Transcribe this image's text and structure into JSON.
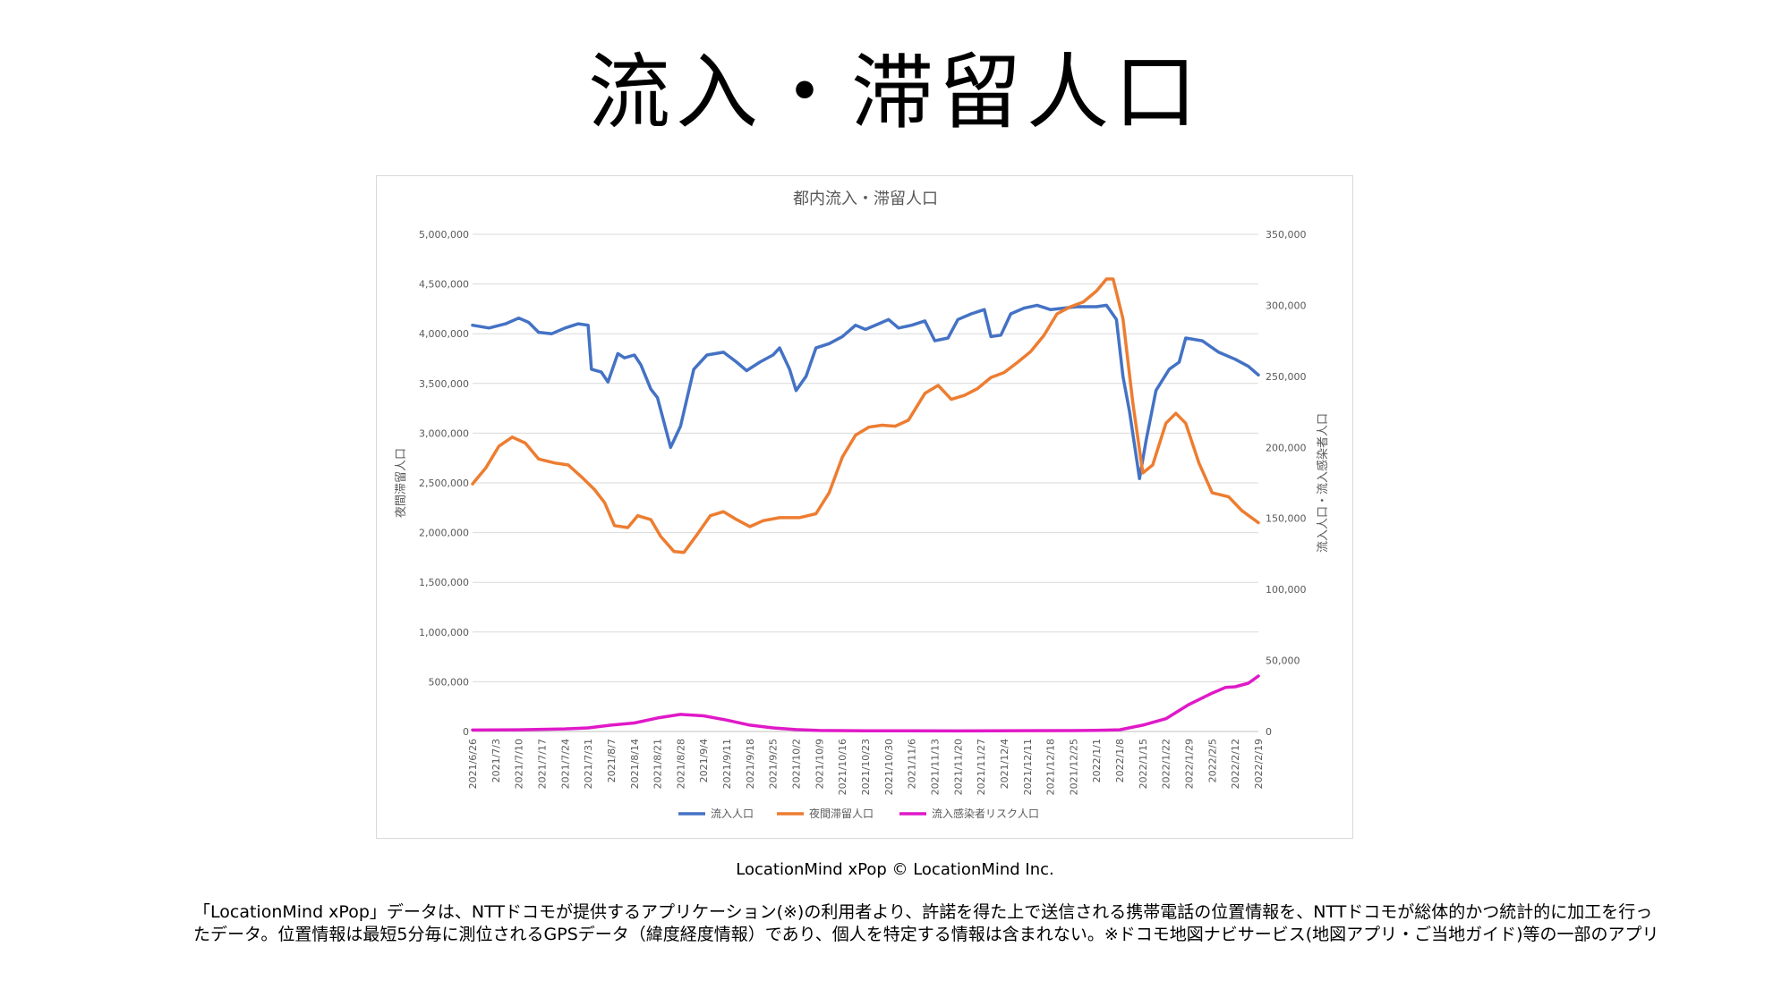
{
  "page": {
    "title": "流入・滞留人口",
    "credit": "LocationMind xPop © LocationMind Inc.",
    "description": "「LocationMind xPop」データは、NTTドコモが提供するアプリケーション(※)の利用者より、許諾を得た上で送信される携帯電話の位置情報を、NTTドコモが総体的かつ統計的に加工を行ったデータ。位置情報は最短5分毎に測位されるGPSデータ（緯度経度情報）であり、個人を特定する情報は含まれない。※ドコモ地図ナビサービス(地図アプリ・ご当地ガイド)等の一部のアプリ"
  },
  "colors": {
    "inflow": "#4472C4",
    "night": "#ED7D31",
    "risk": "#E019C8",
    "grid": "#d9d9d9",
    "axis_text": "#595959"
  },
  "chart_data": {
    "type": "line",
    "title": "都内流入・滞留人口",
    "ylabel_left": "夜間滞留人口",
    "ylabel_right": "流入人口・流入感染者人口",
    "ylim_left": [
      0,
      5000000
    ],
    "ylim_right": [
      0,
      350000
    ],
    "yticks_left": [
      "5,000,000",
      "4,500,000",
      "4,000,000",
      "3,500,000",
      "3,000,000",
      "2,500,000",
      "2,000,000",
      "1,500,000",
      "1,000,000",
      "500,000",
      "0"
    ],
    "yticks_right": [
      "350,000",
      "300,000",
      "250,000",
      "200,000",
      "150,000",
      "100,000",
      "50,000",
      "0"
    ],
    "x_range": [
      "2021/6/26",
      "2022/2/19"
    ],
    "x_ticks": [
      "2021/6/26",
      "2021/7/3",
      "2021/7/10",
      "2021/7/17",
      "2021/7/24",
      "2021/7/31",
      "2021/8/7",
      "2021/8/14",
      "2021/8/21",
      "2021/8/28",
      "2021/9/4",
      "2021/9/11",
      "2021/9/18",
      "2021/9/25",
      "2021/10/2",
      "2021/10/9",
      "2021/10/16",
      "2021/10/23",
      "2021/10/30",
      "2021/11/6",
      "2021/11/13",
      "2021/11/20",
      "2021/11/27",
      "2021/12/4",
      "2021/12/11",
      "2021/12/18",
      "2021/12/25",
      "2022/1/1",
      "2022/1/8",
      "2022/1/15",
      "2022/1/22",
      "2022/1/29",
      "2022/2/5",
      "2022/2/12",
      "2022/2/19"
    ],
    "legend_position": "bottom",
    "grid": true,
    "series": [
      {
        "name": "流入人口",
        "axis": "right",
        "points": [
          [
            "2021/6/26",
            286000
          ],
          [
            "2021/7/1",
            284000
          ],
          [
            "2021/7/6",
            287000
          ],
          [
            "2021/7/10",
            291000
          ],
          [
            "2021/7/13",
            288000
          ],
          [
            "2021/7/16",
            281000
          ],
          [
            "2021/7/20",
            280000
          ],
          [
            "2021/7/24",
            284000
          ],
          [
            "2021/7/28",
            287000
          ],
          [
            "2021/7/31",
            286000
          ],
          [
            "2021/8/1",
            255000
          ],
          [
            "2021/8/4",
            253000
          ],
          [
            "2021/8/6",
            246000
          ],
          [
            "2021/8/9",
            266000
          ],
          [
            "2021/8/11",
            263000
          ],
          [
            "2021/8/14",
            265000
          ],
          [
            "2021/8/16",
            258000
          ],
          [
            "2021/8/19",
            241000
          ],
          [
            "2021/8/21",
            235000
          ],
          [
            "2021/8/25",
            200000
          ],
          [
            "2021/8/28",
            215000
          ],
          [
            "2021/9/1",
            255000
          ],
          [
            "2021/9/5",
            265000
          ],
          [
            "2021/9/10",
            267000
          ],
          [
            "2021/9/14",
            260000
          ],
          [
            "2021/9/17",
            254000
          ],
          [
            "2021/9/21",
            260000
          ],
          [
            "2021/9/25",
            265000
          ],
          [
            "2021/9/27",
            270000
          ],
          [
            "2021/9/30",
            255000
          ],
          [
            "2021/10/2",
            240000
          ],
          [
            "2021/10/5",
            250000
          ],
          [
            "2021/10/8",
            270000
          ],
          [
            "2021/10/12",
            273000
          ],
          [
            "2021/10/16",
            278000
          ],
          [
            "2021/10/20",
            286000
          ],
          [
            "2021/10/23",
            283000
          ],
          [
            "2021/10/27",
            287000
          ],
          [
            "2021/10/30",
            290000
          ],
          [
            "2021/11/2",
            284000
          ],
          [
            "2021/11/6",
            286000
          ],
          [
            "2021/11/10",
            289000
          ],
          [
            "2021/11/13",
            275000
          ],
          [
            "2021/11/17",
            277000
          ],
          [
            "2021/11/20",
            290000
          ],
          [
            "2021/11/24",
            294000
          ],
          [
            "2021/11/28",
            297000
          ],
          [
            "2021/11/30",
            278000
          ],
          [
            "2021/12/3",
            279000
          ],
          [
            "2021/12/6",
            294000
          ],
          [
            "2021/12/10",
            298000
          ],
          [
            "2021/12/14",
            300000
          ],
          [
            "2021/12/18",
            297000
          ],
          [
            "2021/12/22",
            298000
          ],
          [
            "2021/12/26",
            299000
          ],
          [
            "2022/1/1",
            299000
          ],
          [
            "2022/1/4",
            300000
          ],
          [
            "2022/1/7",
            290000
          ],
          [
            "2022/1/9",
            250000
          ],
          [
            "2022/1/11",
            225000
          ],
          [
            "2022/1/14",
            178000
          ],
          [
            "2022/1/16",
            205000
          ],
          [
            "2022/1/19",
            240000
          ],
          [
            "2022/1/23",
            255000
          ],
          [
            "2022/1/26",
            260000
          ],
          [
            "2022/1/28",
            277000
          ],
          [
            "2022/2/2",
            275000
          ],
          [
            "2022/2/7",
            267000
          ],
          [
            "2022/2/12",
            262000
          ],
          [
            "2022/2/16",
            257000
          ],
          [
            "2022/2/19",
            251000
          ]
        ]
      },
      {
        "name": "夜間滞留人口",
        "axis": "left",
        "points": [
          [
            "2021/6/26",
            2490000
          ],
          [
            "2021/6/30",
            2650000
          ],
          [
            "2021/7/4",
            2870000
          ],
          [
            "2021/7/8",
            2960000
          ],
          [
            "2021/7/12",
            2900000
          ],
          [
            "2021/7/16",
            2740000
          ],
          [
            "2021/7/21",
            2700000
          ],
          [
            "2021/7/25",
            2680000
          ],
          [
            "2021/7/29",
            2560000
          ],
          [
            "2021/8/2",
            2430000
          ],
          [
            "2021/8/5",
            2300000
          ],
          [
            "2021/8/8",
            2070000
          ],
          [
            "2021/8/12",
            2050000
          ],
          [
            "2021/8/15",
            2170000
          ],
          [
            "2021/8/19",
            2130000
          ],
          [
            "2021/8/22",
            1960000
          ],
          [
            "2021/8/26",
            1810000
          ],
          [
            "2021/8/29",
            1800000
          ],
          [
            "2021/9/2",
            1980000
          ],
          [
            "2021/9/6",
            2170000
          ],
          [
            "2021/9/10",
            2210000
          ],
          [
            "2021/9/14",
            2130000
          ],
          [
            "2021/9/18",
            2060000
          ],
          [
            "2021/9/22",
            2120000
          ],
          [
            "2021/9/27",
            2150000
          ],
          [
            "2021/10/3",
            2150000
          ],
          [
            "2021/10/8",
            2190000
          ],
          [
            "2021/10/12",
            2400000
          ],
          [
            "2021/10/16",
            2760000
          ],
          [
            "2021/10/20",
            2980000
          ],
          [
            "2021/10/24",
            3060000
          ],
          [
            "2021/10/28",
            3080000
          ],
          [
            "2021/11/1",
            3070000
          ],
          [
            "2021/11/5",
            3130000
          ],
          [
            "2021/11/10",
            3400000
          ],
          [
            "2021/11/14",
            3480000
          ],
          [
            "2021/11/18",
            3340000
          ],
          [
            "2021/11/22",
            3380000
          ],
          [
            "2021/11/26",
            3450000
          ],
          [
            "2021/11/30",
            3560000
          ],
          [
            "2021/12/4",
            3610000
          ],
          [
            "2021/12/8",
            3710000
          ],
          [
            "2021/12/12",
            3820000
          ],
          [
            "2021/12/16",
            3980000
          ],
          [
            "2021/12/20",
            4200000
          ],
          [
            "2021/12/24",
            4270000
          ],
          [
            "2021/12/28",
            4320000
          ],
          [
            "2022/1/1",
            4430000
          ],
          [
            "2022/1/4",
            4550000
          ],
          [
            "2022/1/6",
            4550000
          ],
          [
            "2022/1/9",
            4150000
          ],
          [
            "2022/1/12",
            3300000
          ],
          [
            "2022/1/15",
            2600000
          ],
          [
            "2022/1/18",
            2680000
          ],
          [
            "2022/1/22",
            3100000
          ],
          [
            "2022/1/25",
            3200000
          ],
          [
            "2022/1/28",
            3100000
          ],
          [
            "2022/2/1",
            2700000
          ],
          [
            "2022/2/5",
            2400000
          ],
          [
            "2022/2/10",
            2360000
          ],
          [
            "2022/2/14",
            2220000
          ],
          [
            "2022/2/19",
            2100000
          ]
        ]
      },
      {
        "name": "流入感染者リスク人口",
        "axis": "right",
        "points": [
          [
            "2021/6/26",
            1000
          ],
          [
            "2021/7/10",
            1200
          ],
          [
            "2021/7/24",
            1800
          ],
          [
            "2021/7/31",
            2500
          ],
          [
            "2021/8/7",
            4500
          ],
          [
            "2021/8/14",
            6000
          ],
          [
            "2021/8/21",
            9500
          ],
          [
            "2021/8/28",
            12000
          ],
          [
            "2021/9/4",
            11000
          ],
          [
            "2021/9/11",
            8000
          ],
          [
            "2021/9/18",
            4500
          ],
          [
            "2021/9/25",
            2500
          ],
          [
            "2021/10/2",
            1300
          ],
          [
            "2021/10/9",
            700
          ],
          [
            "2021/10/23",
            500
          ],
          [
            "2021/11/20",
            400
          ],
          [
            "2021/12/25",
            600
          ],
          [
            "2022/1/1",
            800
          ],
          [
            "2022/1/8",
            1200
          ],
          [
            "2022/1/15",
            4500
          ],
          [
            "2022/1/22",
            9000
          ],
          [
            "2022/1/29",
            19000
          ],
          [
            "2022/2/5",
            27000
          ],
          [
            "2022/2/9",
            31000
          ],
          [
            "2022/2/12",
            31500
          ],
          [
            "2022/2/16",
            34000
          ],
          [
            "2022/2/19",
            39000
          ]
        ]
      }
    ]
  }
}
